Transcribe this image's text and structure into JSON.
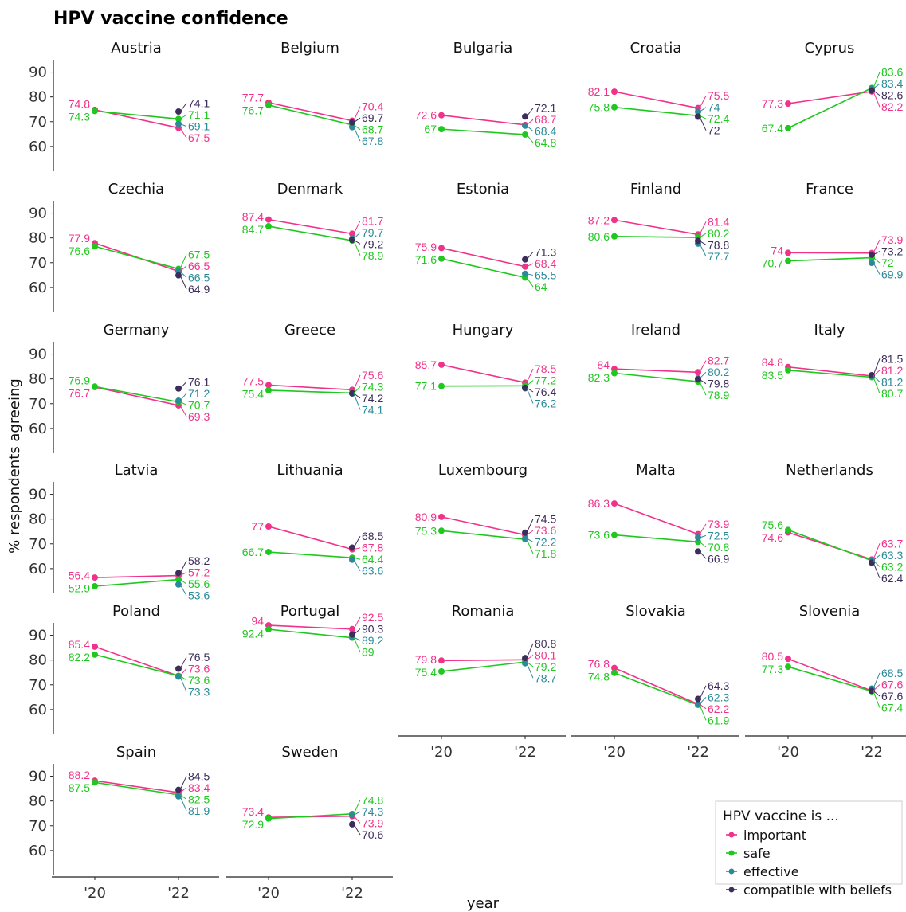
{
  "chart_data": {
    "type": "line",
    "title": "HPV vaccine confidence",
    "xlabel": "year",
    "ylabel": "% respondents agreeing",
    "x": [
      "'20",
      "'22"
    ],
    "ylim": [
      50,
      95
    ],
    "yticks": [
      60,
      70,
      80,
      90
    ],
    "legend": {
      "title": "HPV vaccine is ...",
      "position": "bottom-right",
      "items": [
        "important",
        "safe",
        "effective",
        "compatible with beliefs"
      ]
    },
    "series_colors": {
      "important": "#f0328a",
      "safe": "#1ec81e",
      "effective": "#2a8a99",
      "compatible with beliefs": "#3d2d5c"
    },
    "countries": [
      {
        "name": "Austria",
        "important": [
          74.8,
          67.5
        ],
        "safe": [
          74.3,
          71.1
        ],
        "effective": [
          null,
          69.1
        ],
        "compatible": [
          null,
          74.1
        ]
      },
      {
        "name": "Belgium",
        "important": [
          77.7,
          70.4
        ],
        "safe": [
          76.7,
          68.7
        ],
        "effective": [
          null,
          67.8
        ],
        "compatible": [
          null,
          69.7
        ]
      },
      {
        "name": "Bulgaria",
        "important": [
          72.6,
          68.7
        ],
        "safe": [
          67,
          64.8
        ],
        "effective": [
          null,
          68.4
        ],
        "compatible": [
          null,
          72.1
        ]
      },
      {
        "name": "Croatia",
        "important": [
          82.1,
          75.5
        ],
        "safe": [
          75.8,
          72.4
        ],
        "effective": [
          null,
          74
        ],
        "compatible": [
          null,
          72
        ]
      },
      {
        "name": "Cyprus",
        "important": [
          77.3,
          82.2
        ],
        "safe": [
          67.4,
          83.6
        ],
        "effective": [
          null,
          83.4
        ],
        "compatible": [
          null,
          82.6
        ]
      },
      {
        "name": "Czechia",
        "important": [
          77.9,
          66.5
        ],
        "safe": [
          76.6,
          67.5
        ],
        "effective": [
          null,
          66.5
        ],
        "compatible": [
          null,
          64.9
        ]
      },
      {
        "name": "Denmark",
        "important": [
          87.4,
          81.7
        ],
        "safe": [
          84.7,
          78.9
        ],
        "effective": [
          null,
          79.7
        ],
        "compatible": [
          null,
          79.2
        ]
      },
      {
        "name": "Estonia",
        "important": [
          75.9,
          68.4
        ],
        "safe": [
          71.6,
          64
        ],
        "effective": [
          null,
          65.5
        ],
        "compatible": [
          null,
          71.3
        ]
      },
      {
        "name": "Finland",
        "important": [
          87.2,
          81.4
        ],
        "safe": [
          80.6,
          80.2
        ],
        "effective": [
          null,
          77.7
        ],
        "compatible": [
          null,
          78.8
        ]
      },
      {
        "name": "France",
        "important": [
          74,
          73.9
        ],
        "safe": [
          70.7,
          72
        ],
        "effective": [
          null,
          69.9
        ],
        "compatible": [
          null,
          73.2
        ]
      },
      {
        "name": "Germany",
        "important": [
          76.7,
          69.3
        ],
        "safe": [
          76.9,
          70.7
        ],
        "effective": [
          null,
          71.2
        ],
        "compatible": [
          null,
          76.1
        ]
      },
      {
        "name": "Greece",
        "important": [
          77.5,
          75.6
        ],
        "safe": [
          75.4,
          74.3
        ],
        "effective": [
          null,
          74.1
        ],
        "compatible": [
          null,
          74.2
        ]
      },
      {
        "name": "Hungary",
        "important": [
          85.7,
          78.5
        ],
        "safe": [
          77.1,
          77.2
        ],
        "effective": [
          null,
          76.2
        ],
        "compatible": [
          null,
          76.4
        ]
      },
      {
        "name": "Ireland",
        "important": [
          84,
          82.7
        ],
        "safe": [
          82.3,
          78.9
        ],
        "effective": [
          null,
          80.2
        ],
        "compatible": [
          null,
          79.8
        ]
      },
      {
        "name": "Italy",
        "important": [
          84.8,
          81.2
        ],
        "safe": [
          83.5,
          80.7
        ],
        "effective": [
          null,
          81.2
        ],
        "compatible": [
          null,
          81.5
        ]
      },
      {
        "name": "Latvia",
        "important": [
          56.4,
          57.2
        ],
        "safe": [
          52.9,
          55.6
        ],
        "effective": [
          null,
          53.6
        ],
        "compatible": [
          null,
          58.2
        ]
      },
      {
        "name": "Lithuania",
        "important": [
          77,
          67.8
        ],
        "safe": [
          66.7,
          64.4
        ],
        "effective": [
          null,
          63.6
        ],
        "compatible": [
          null,
          68.5
        ]
      },
      {
        "name": "Luxembourg",
        "important": [
          80.9,
          73.6
        ],
        "safe": [
          75.3,
          71.8
        ],
        "effective": [
          null,
          72.2
        ],
        "compatible": [
          null,
          74.5
        ]
      },
      {
        "name": "Malta",
        "important": [
          86.3,
          73.9
        ],
        "safe": [
          73.6,
          70.8
        ],
        "effective": [
          null,
          72.5
        ],
        "compatible": [
          null,
          66.9
        ]
      },
      {
        "name": "Netherlands",
        "important": [
          74.6,
          63.7
        ],
        "safe": [
          75.6,
          63.2
        ],
        "effective": [
          null,
          63.3
        ],
        "compatible": [
          null,
          62.4
        ]
      },
      {
        "name": "Poland",
        "important": [
          85.4,
          73.6
        ],
        "safe": [
          82.2,
          73.6
        ],
        "effective": [
          null,
          73.3
        ],
        "compatible": [
          null,
          76.5
        ]
      },
      {
        "name": "Portugal",
        "important": [
          94,
          92.5
        ],
        "safe": [
          92.4,
          89
        ],
        "effective": [
          null,
          89.2
        ],
        "compatible": [
          null,
          90.3
        ]
      },
      {
        "name": "Romania",
        "important": [
          79.8,
          80.1
        ],
        "safe": [
          75.4,
          79.2
        ],
        "effective": [
          null,
          78.7
        ],
        "compatible": [
          null,
          80.8
        ]
      },
      {
        "name": "Slovakia",
        "important": [
          76.8,
          62.2
        ],
        "safe": [
          74.8,
          61.9
        ],
        "effective": [
          null,
          62.3
        ],
        "compatible": [
          null,
          64.3
        ]
      },
      {
        "name": "Slovenia",
        "important": [
          80.5,
          67.6
        ],
        "safe": [
          77.3,
          67.4
        ],
        "effective": [
          null,
          68.5
        ],
        "compatible": [
          null,
          67.6
        ]
      },
      {
        "name": "Spain",
        "important": [
          88.2,
          83.4
        ],
        "safe": [
          87.5,
          82.5
        ],
        "effective": [
          null,
          81.9
        ],
        "compatible": [
          null,
          84.5
        ]
      },
      {
        "name": "Sweden",
        "important": [
          73.4,
          73.9
        ],
        "safe": [
          72.9,
          74.8
        ],
        "effective": [
          null,
          74.3
        ],
        "compatible": [
          null,
          70.6
        ]
      }
    ]
  }
}
